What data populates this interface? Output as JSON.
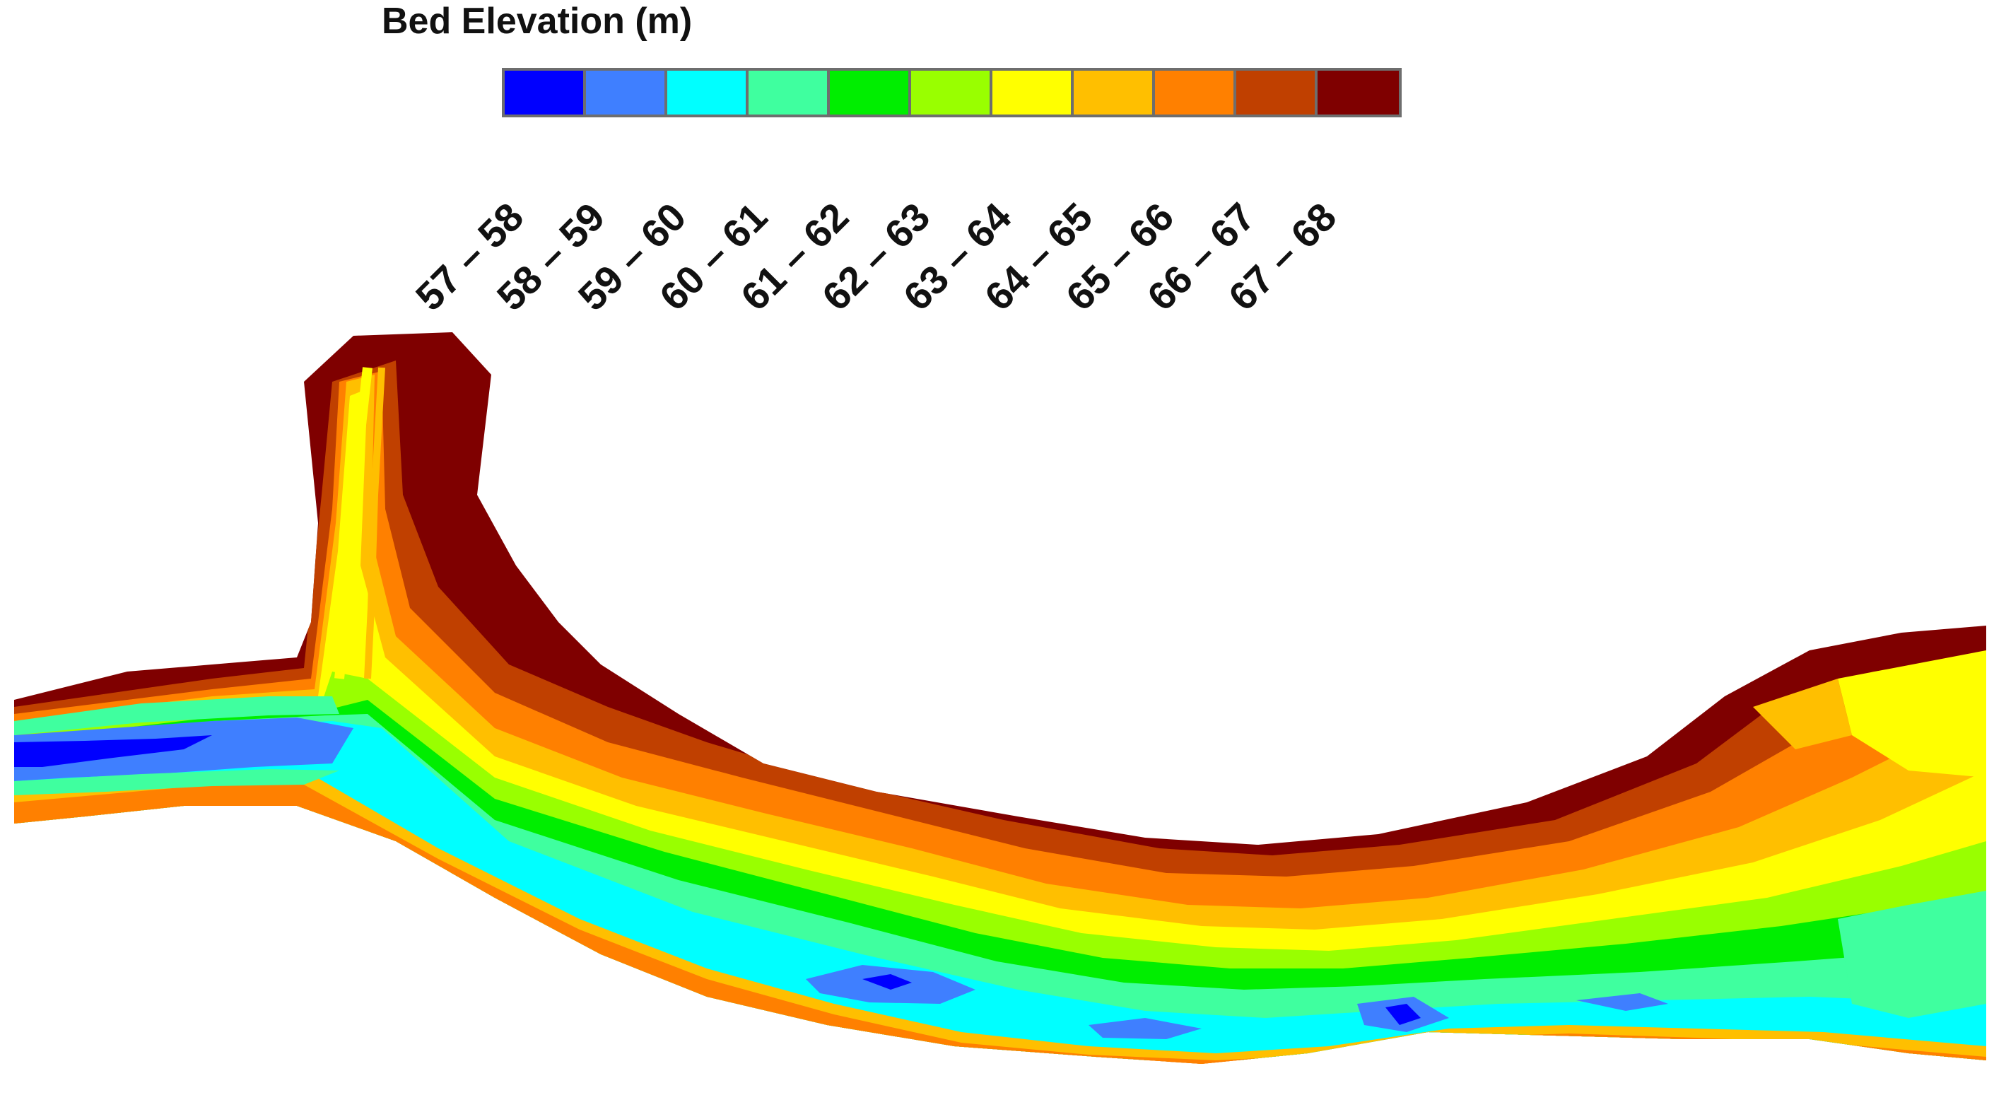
{
  "legend": {
    "title": "Bed Elevation (m)",
    "classes": [
      {
        "label": "57 – 58",
        "color": "#0000ff"
      },
      {
        "label": "58 – 59",
        "color": "#3f7fff"
      },
      {
        "label": "59 – 60",
        "color": "#00ffff"
      },
      {
        "label": "60 – 61",
        "color": "#3fff9f"
      },
      {
        "label": "61 – 62",
        "color": "#00ee00"
      },
      {
        "label": "62 – 63",
        "color": "#99ff00"
      },
      {
        "label": "63 – 64",
        "color": "#ffff00"
      },
      {
        "label": "64 – 65",
        "color": "#ffbf00"
      },
      {
        "label": "65 – 66",
        "color": "#ff8000"
      },
      {
        "label": "66 – 67",
        "color": "#c04000"
      },
      {
        "label": "67 – 68",
        "color": "#7f0000"
      }
    ]
  }
}
